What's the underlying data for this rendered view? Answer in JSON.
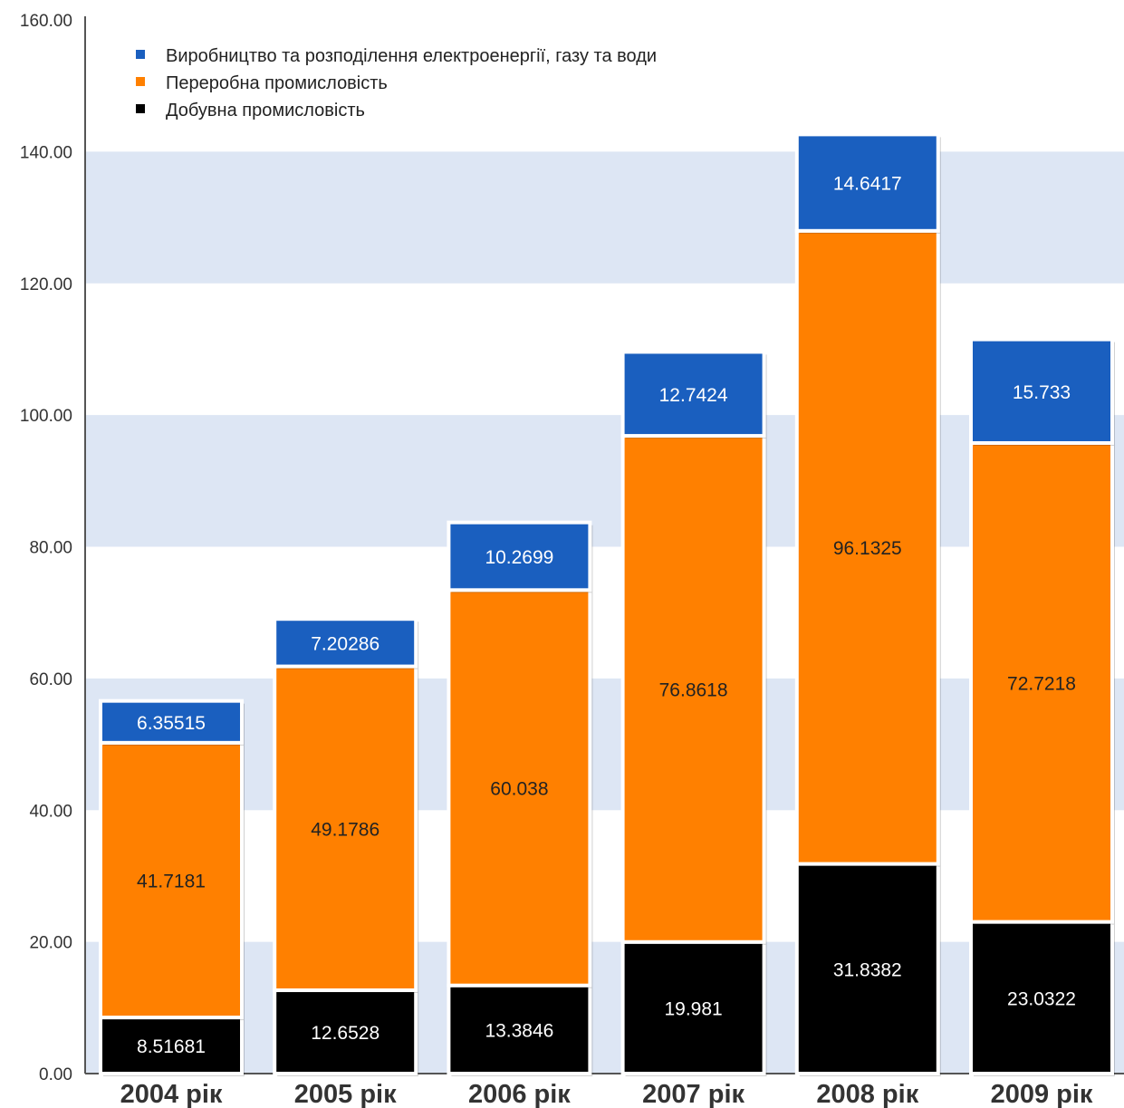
{
  "chart_data": {
    "type": "bar",
    "stacked": true,
    "categories": [
      "2004 рік",
      "2005 рік",
      "2006 рік",
      "2007 рік",
      "2008 рік",
      "2009 рік"
    ],
    "series": [
      {
        "name": "Добувна промисловість",
        "color": "#000000",
        "label_color": "#ffffff",
        "values": [
          8.51681,
          12.6528,
          13.3846,
          19.981,
          31.8382,
          23.0322
        ],
        "labels": [
          "8.51681",
          "12.6528",
          "13.3846",
          "19.981",
          "31.8382",
          "23.0322"
        ]
      },
      {
        "name": "Переробна промисловість",
        "color": "#ff8000",
        "label_color": "#222222",
        "values": [
          41.7181,
          49.1786,
          60.038,
          76.8618,
          96.1325,
          72.7218
        ],
        "labels": [
          "41.7181",
          "49.1786",
          "60.038",
          "76.8618",
          "96.1325",
          "72.7218"
        ]
      },
      {
        "name": "Виробництво та розподілення електроенергії, газу та води",
        "color": "#1a5fbf",
        "label_color": "#ffffff",
        "values": [
          6.35515,
          7.20286,
          10.2699,
          12.7424,
          14.6417,
          15.733
        ],
        "labels": [
          "6.35515",
          "7.20286",
          "10.2699",
          "12.7424",
          "14.6417",
          "15.733"
        ]
      }
    ],
    "legend_order": [
      2,
      1,
      0
    ],
    "ylim": [
      0,
      160
    ],
    "yticks": [
      "0.00",
      "20.00",
      "40.00",
      "60.00",
      "80.00",
      "100.00",
      "120.00",
      "140.00",
      "160.00"
    ],
    "band_color": "#dde6f4",
    "legend_position": "top-left",
    "grid": false
  }
}
